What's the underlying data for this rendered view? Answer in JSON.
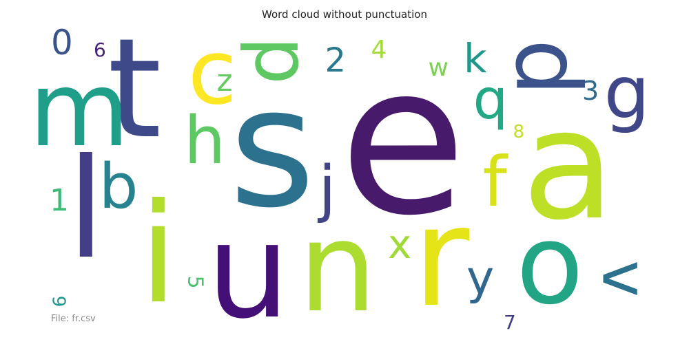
{
  "title": "Word cloud without punctuation",
  "footer": "File: fr.csv",
  "words": [
    {
      "text": "e",
      "color": "#481a6c",
      "rotated": false
    },
    {
      "text": "s",
      "color": "#2c728e",
      "rotated": false
    },
    {
      "text": "a",
      "color": "#bddf26",
      "rotated": false
    },
    {
      "text": "r",
      "color": "#e5e419",
      "rotated": false
    },
    {
      "text": "o",
      "color": "#21a585",
      "rotated": false
    },
    {
      "text": "u",
      "color": "#440f76",
      "rotated": false
    },
    {
      "text": "n",
      "color": "#addc30",
      "rotated": false
    },
    {
      "text": "i",
      "color": "#b2dd2c",
      "rotated": false
    },
    {
      "text": "t",
      "color": "#3e4989",
      "rotated": false
    },
    {
      "text": "l",
      "color": "#433e85",
      "rotated": false
    },
    {
      "text": "m",
      "color": "#1f9e89",
      "rotated": false
    },
    {
      "text": "c",
      "color": "#fde725",
      "rotated": false
    },
    {
      "text": "d",
      "color": "#3b528b",
      "rotated": true
    },
    {
      "text": "p",
      "color": "#5ec962",
      "rotated": true
    },
    {
      "text": "b",
      "color": "#26828e",
      "rotated": false
    },
    {
      "text": "h",
      "color": "#5ec962",
      "rotated": false
    },
    {
      "text": "g",
      "color": "#3f4788",
      "rotated": false
    },
    {
      "text": "f",
      "color": "#d8e219",
      "rotated": false
    },
    {
      "text": "v",
      "color": "#2c728e",
      "rotated": true
    },
    {
      "text": "j",
      "color": "#414487",
      "rotated": false
    },
    {
      "text": "q",
      "color": "#22a884",
      "rotated": false
    },
    {
      "text": "x",
      "color": "#a0da39",
      "rotated": false
    },
    {
      "text": "y",
      "color": "#31668e",
      "rotated": false
    },
    {
      "text": "k",
      "color": "#1f988b",
      "rotated": false
    },
    {
      "text": "z",
      "color": "#63cb5f",
      "rotated": false
    },
    {
      "text": "w",
      "color": "#7ad151",
      "rotated": false
    },
    {
      "text": "2",
      "color": "#2a788e",
      "rotated": false
    },
    {
      "text": "3",
      "color": "#31688e",
      "rotated": false
    },
    {
      "text": "0",
      "color": "#3b528b",
      "rotated": false
    },
    {
      "text": "1",
      "color": "#3bbb75",
      "rotated": false
    },
    {
      "text": "4",
      "color": "#a5db36",
      "rotated": false
    },
    {
      "text": "5",
      "color": "#4ac16d",
      "rotated": true
    },
    {
      "text": "6",
      "color": "#482475",
      "rotated": false
    },
    {
      "text": "7",
      "color": "#423f85",
      "rotated": false
    },
    {
      "text": "8",
      "color": "#c2df23",
      "rotated": false
    },
    {
      "text": "9",
      "color": "#1f958b",
      "rotated": true
    }
  ]
}
